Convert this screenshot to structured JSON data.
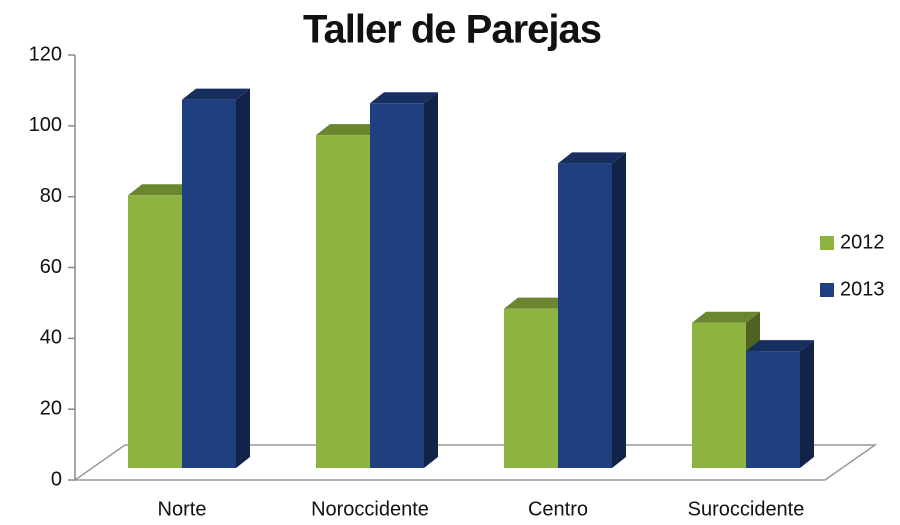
{
  "chart_data": {
    "type": "bar3d",
    "title": "Taller de Parejas",
    "categories": [
      "Norte",
      "Noroccidente",
      "Centro",
      "Suroccidente"
    ],
    "series": [
      {
        "name": "2012",
        "color": "#8db440",
        "values": [
          77,
          94,
          45,
          41
        ]
      },
      {
        "name": "2013",
        "color": "#1f3f7f",
        "values": [
          104,
          103,
          86,
          33
        ]
      }
    ],
    "ylim": [
      0,
      120
    ],
    "yticks": [
      0,
      20,
      40,
      60,
      80,
      100,
      120
    ],
    "legend": "right"
  }
}
